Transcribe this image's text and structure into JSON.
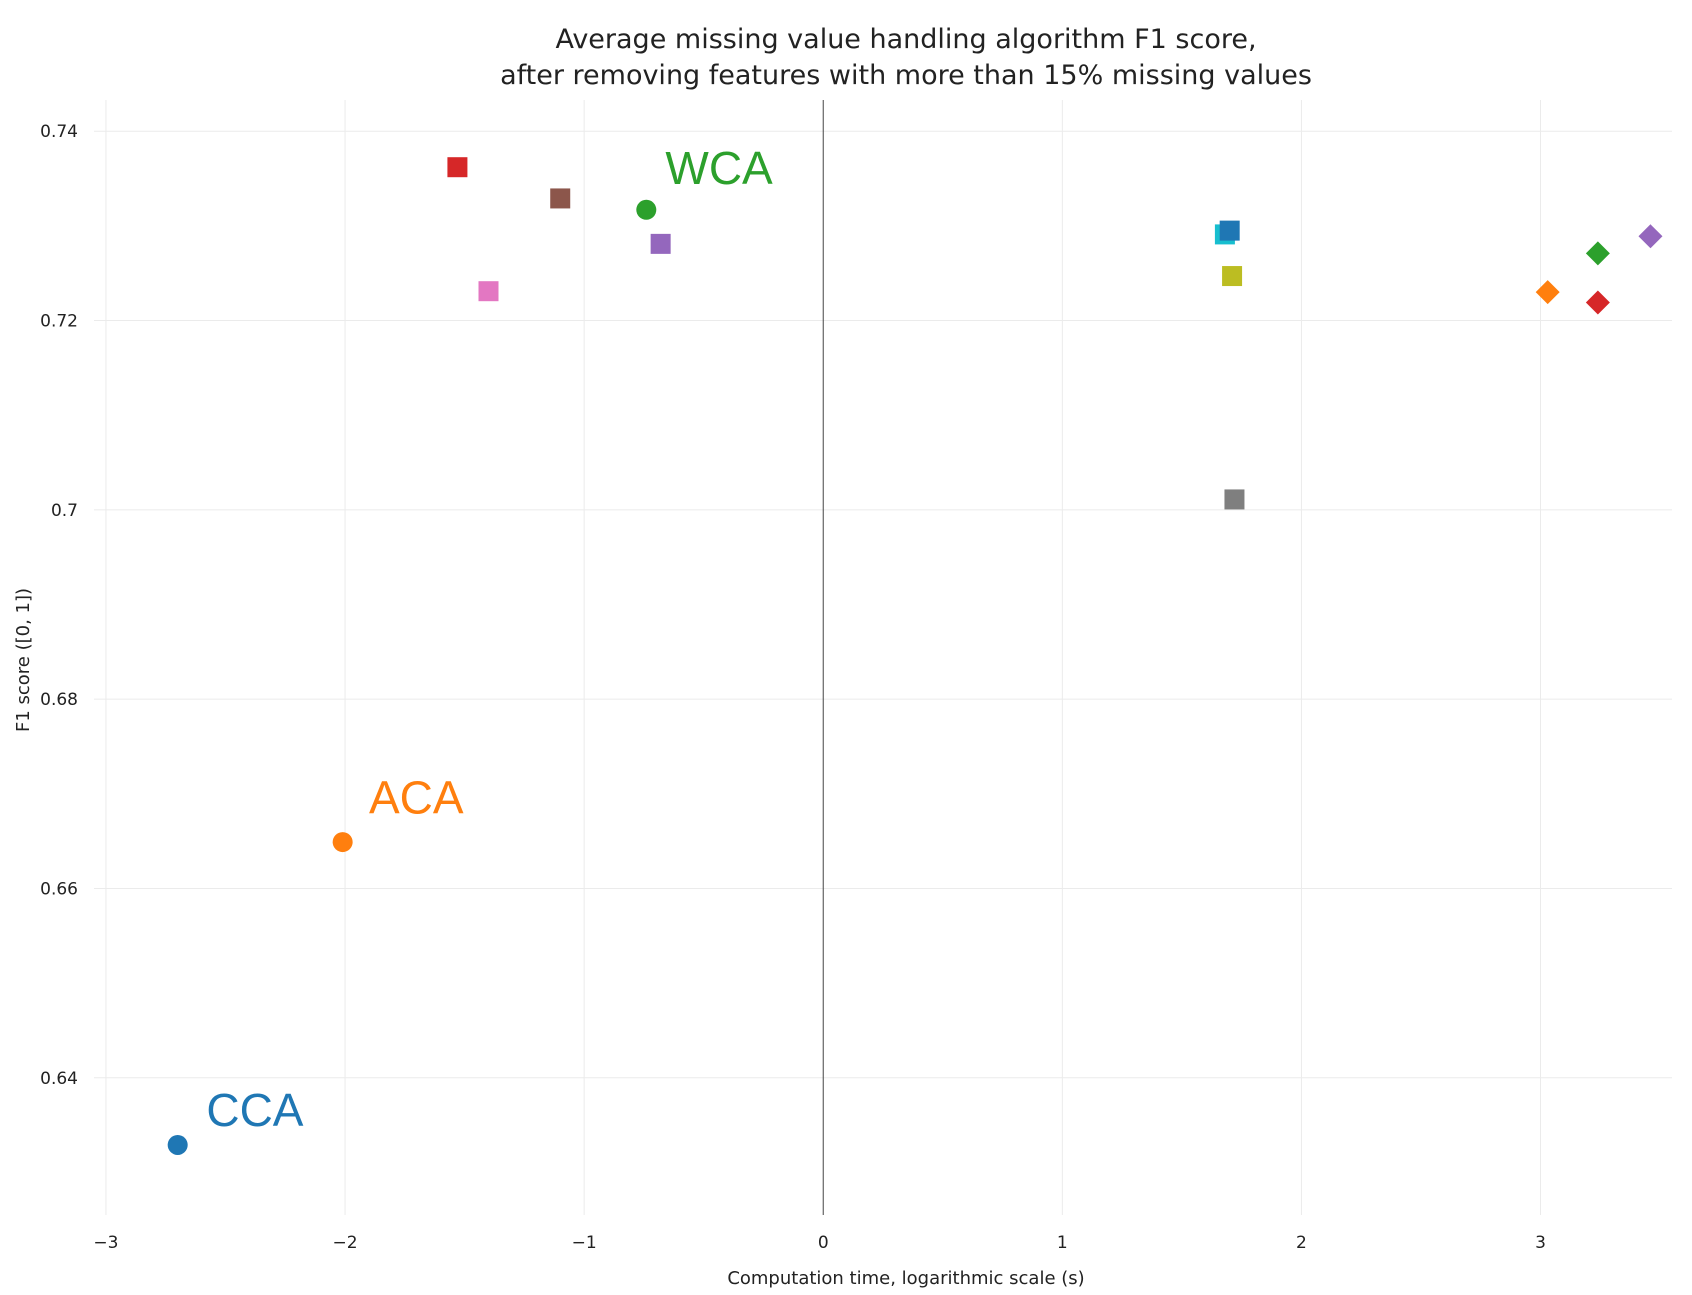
{
  "chart_data": {
    "type": "scatter",
    "title_lines": [
      "Average missing value handling algorithm F1 score,",
      "after removing features with more than 15% missing values"
    ],
    "xlabel": "Computation time, logarithmic scale (s)",
    "ylabel": "F1 score ([0, 1])",
    "xlim": [
      -3.05,
      3.55
    ],
    "ylim": [
      0.6255,
      0.7433
    ],
    "x_ticks": [
      {
        "value": -3,
        "label": "−3"
      },
      {
        "value": -2,
        "label": "−2"
      },
      {
        "value": -1,
        "label": "−1"
      },
      {
        "value": 0,
        "label": "0"
      },
      {
        "value": 1,
        "label": "1"
      },
      {
        "value": 2,
        "label": "2"
      },
      {
        "value": 3,
        "label": "3"
      }
    ],
    "y_ticks": [
      {
        "value": 0.64,
        "label": "0.64"
      },
      {
        "value": 0.66,
        "label": "0.66"
      },
      {
        "value": 0.68,
        "label": "0.68"
      },
      {
        "value": 0.7,
        "label": "0.7"
      },
      {
        "value": 0.72,
        "label": "0.72"
      },
      {
        "value": 0.74,
        "label": "0.74"
      }
    ],
    "grid": true,
    "zero_line_x": true,
    "legend": "none",
    "points": [
      {
        "x": -2.7,
        "y": 0.6329,
        "marker": "circle",
        "color": "#1f77b4"
      },
      {
        "x": -2.01,
        "y": 0.6649,
        "marker": "circle",
        "color": "#ff7f0e"
      },
      {
        "x": -0.74,
        "y": 0.7317,
        "marker": "circle",
        "color": "#2ca02c"
      },
      {
        "x": -1.53,
        "y": 0.7362,
        "marker": "square",
        "color": "#d62728"
      },
      {
        "x": -1.1,
        "y": 0.7329,
        "marker": "square",
        "color": "#8c564b"
      },
      {
        "x": -0.68,
        "y": 0.7281,
        "marker": "square",
        "color": "#9467bd"
      },
      {
        "x": -1.4,
        "y": 0.7231,
        "marker": "square",
        "color": "#e377c2"
      },
      {
        "x": 1.68,
        "y": 0.7291,
        "marker": "square",
        "color": "#17becf"
      },
      {
        "x": 1.7,
        "y": 0.7295,
        "marker": "square",
        "color": "#1f77b4"
      },
      {
        "x": 1.71,
        "y": 0.7247,
        "marker": "square",
        "color": "#bcbd22"
      },
      {
        "x": 1.72,
        "y": 0.7011,
        "marker": "square",
        "color": "#7f7f7f"
      },
      {
        "x": 3.03,
        "y": 0.723,
        "marker": "diamond",
        "color": "#ff7f0e"
      },
      {
        "x": 3.24,
        "y": 0.7271,
        "marker": "diamond",
        "color": "#2ca02c"
      },
      {
        "x": 3.24,
        "y": 0.7219,
        "marker": "diamond",
        "color": "#d62728"
      },
      {
        "x": 3.46,
        "y": 0.7289,
        "marker": "diamond",
        "color": "#9467bd"
      }
    ],
    "annotations": [
      {
        "text": "CCA",
        "x": -2.58,
        "y": 0.6349,
        "color": "#1f77b4"
      },
      {
        "text": "ACA",
        "x": -1.9,
        "y": 0.6679,
        "color": "#ff7f0e"
      },
      {
        "text": "WCA",
        "x": -0.66,
        "y": 0.7344,
        "color": "#2ca02c"
      }
    ]
  }
}
